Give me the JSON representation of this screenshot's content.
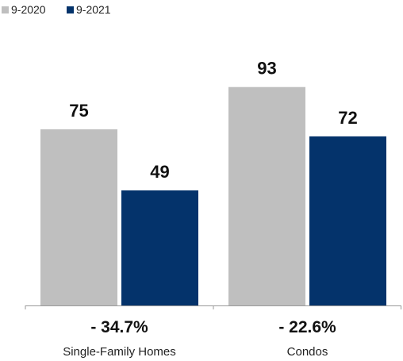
{
  "chart_data": {
    "type": "bar",
    "categories": [
      "Single-Family Homes",
      "Condos"
    ],
    "series": [
      {
        "name": "9-2020",
        "values": [
          75,
          93
        ],
        "color": "#bfbfbf"
      },
      {
        "name": "9-2021",
        "values": [
          49,
          72
        ],
        "color": "#04336b"
      }
    ],
    "changes": [
      "- 34.7%",
      "- 22.6%"
    ],
    "ylim": [
      0,
      100
    ],
    "grid": false,
    "legend_position": "top-left",
    "axis_color": "#999999"
  }
}
